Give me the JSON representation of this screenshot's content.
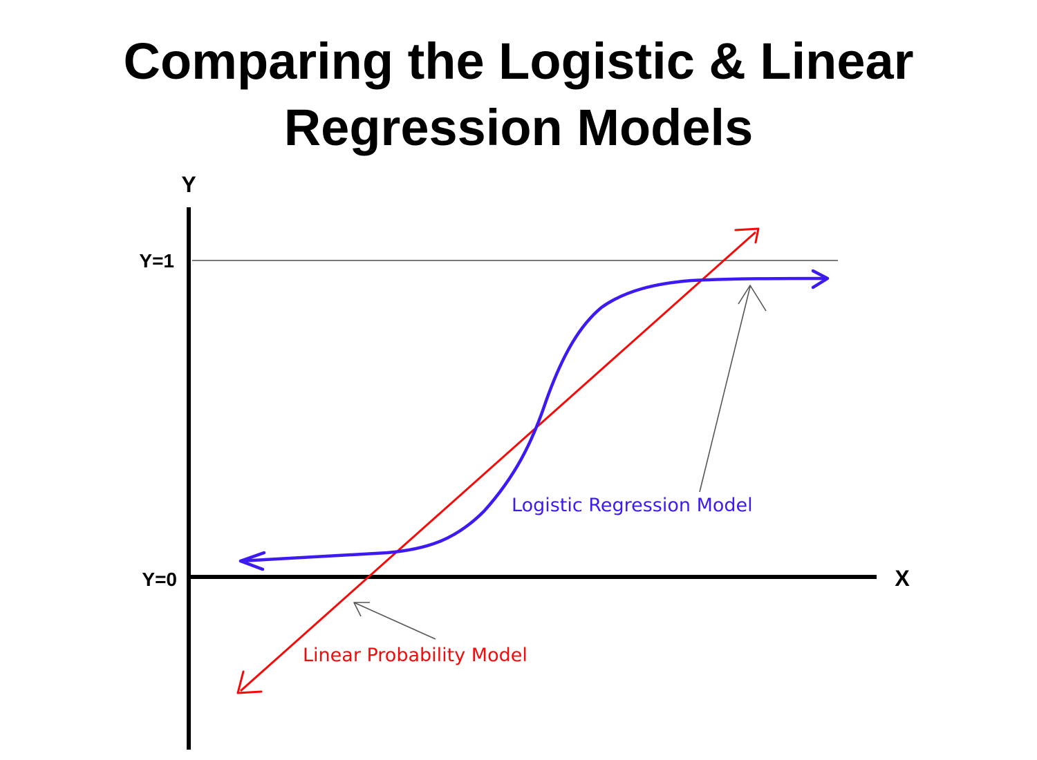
{
  "title": {
    "line1": "Comparing the Logistic & Linear",
    "line2": "Regression Models"
  },
  "axes": {
    "y_label": "Y",
    "x_label": "X",
    "y1_tick": "Y=1",
    "y0_tick": "Y=0"
  },
  "labels": {
    "logistic": "Logistic Regression Model",
    "linear": "Linear Probability Model"
  },
  "colors": {
    "logistic": "#3d1bf0",
    "linear": "#f50a0a",
    "axis": "#000000",
    "reference_line": "#7a7a7a",
    "pointer": "#555555"
  }
}
